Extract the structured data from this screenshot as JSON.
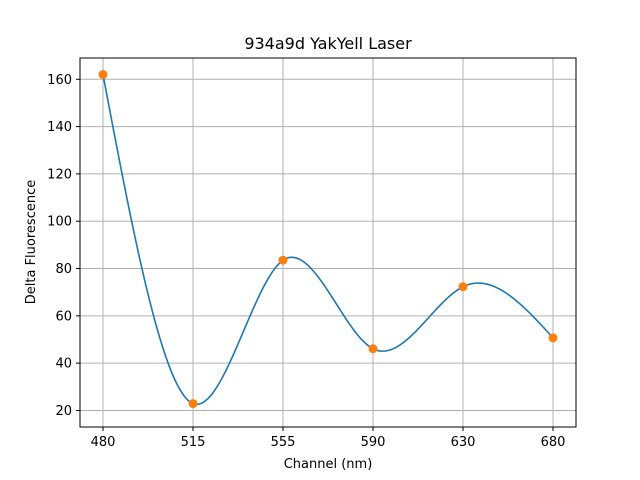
{
  "chart_data": {
    "type": "line",
    "title": "934a9d YakYell Laser",
    "xlabel": "Channel (nm)",
    "ylabel": "Delta Fluorescence",
    "categories": [
      "480",
      "515",
      "555",
      "590",
      "630",
      "680"
    ],
    "series": [
      {
        "values": [
          162.0,
          22.9,
          83.5,
          46.1,
          72.3,
          50.7
        ]
      }
    ],
    "yticks": [
      20,
      40,
      60,
      80,
      100,
      120,
      140,
      160
    ],
    "ylim": [
      13,
      169
    ],
    "grid": true,
    "line_color": "#1f77b4",
    "marker_color": "#ff7f0e"
  }
}
